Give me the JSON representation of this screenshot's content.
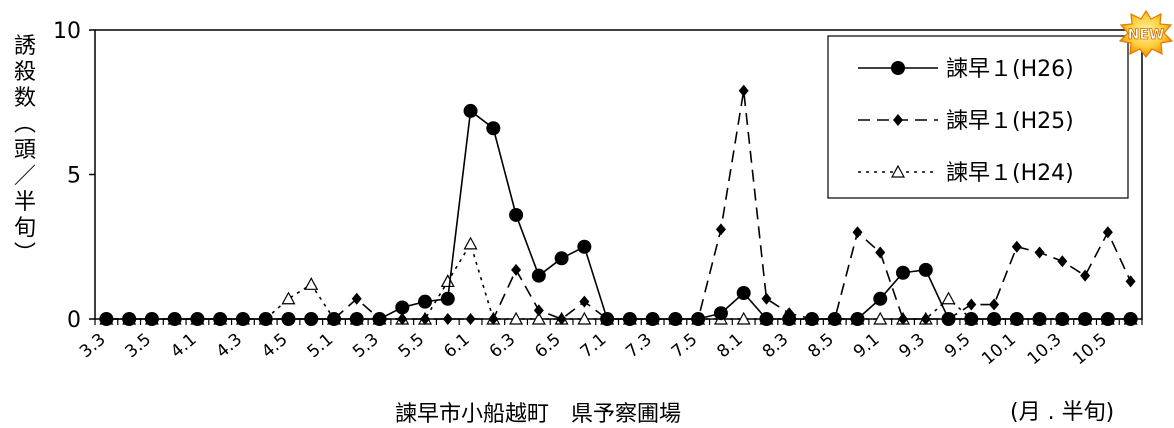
{
  "chart_data": {
    "type": "line",
    "ylabel": "誘殺数（頭/半旬）",
    "xlabel": "諫早市小船越町　県予察圃場",
    "x_unit": "(月 . 半旬)",
    "ylim": [
      0,
      10
    ],
    "yticks": [
      "0",
      "5",
      "10"
    ],
    "categories": [
      "3.3",
      "3.4",
      "3.5",
      "3.6",
      "4.1",
      "4.2",
      "4.3",
      "4.4",
      "4.5",
      "4.6",
      "5.1",
      "5.2",
      "5.3",
      "5.4",
      "5.5",
      "5.6",
      "6.1",
      "6.2",
      "6.3",
      "6.4",
      "6.5",
      "6.6",
      "7.1",
      "7.2",
      "7.3",
      "7.4",
      "7.5",
      "7.6",
      "8.1",
      "8.2",
      "8.3",
      "8.4",
      "8.5",
      "8.6",
      "9.1",
      "9.2",
      "9.3",
      "9.4",
      "9.5",
      "9.6",
      "10.1",
      "10.2",
      "10.3",
      "10.4",
      "10.5",
      "10.6"
    ],
    "tick_labels": [
      "3.3",
      "",
      "3.5",
      "",
      "4.1",
      "",
      "4.3",
      "",
      "4.5",
      "",
      "5.1",
      "",
      "5.3",
      "",
      "5.5",
      "",
      "6.1",
      "",
      "6.3",
      "",
      "6.5",
      "",
      "7.1",
      "",
      "7.3",
      "",
      "7.5",
      "",
      "8.1",
      "",
      "8.3",
      "",
      "8.5",
      "",
      "9.1",
      "",
      "9.3",
      "",
      "9.5",
      "",
      "10.1",
      "",
      "10.3",
      "",
      "10.5",
      ""
    ],
    "series": [
      {
        "name": "諫早１(H26)",
        "style": "solid",
        "marker": "circle",
        "values": [
          0,
          0,
          0,
          0,
          0,
          0,
          0,
          0,
          0,
          0,
          0,
          0,
          0,
          0.4,
          0.6,
          0.7,
          7.2,
          6.6,
          3.6,
          1.5,
          2.1,
          2.5,
          0,
          0,
          0,
          0,
          0,
          0.2,
          0.9,
          0,
          0,
          0,
          0,
          0,
          0.7,
          1.6,
          1.7,
          0,
          0,
          0,
          0,
          0,
          0,
          0,
          0,
          0
        ]
      },
      {
        "name": "諫早１(H25)",
        "style": "dashed",
        "marker": "diamond",
        "values": [
          0,
          0,
          0,
          0,
          0,
          0,
          0,
          0,
          0,
          0,
          0,
          0.7,
          0,
          0,
          0,
          0,
          0,
          0,
          1.7,
          0.3,
          0,
          0.6,
          0,
          0,
          0,
          0,
          0,
          3.1,
          7.9,
          0.7,
          0.2,
          0,
          0,
          3.0,
          2.3,
          0,
          0,
          0,
          0.5,
          0.5,
          2.5,
          2.3,
          2.0,
          1.5,
          3.0,
          1.3
        ]
      },
      {
        "name": "諫早１(H24)",
        "style": "dotted",
        "marker": "triangle",
        "values": [
          0,
          0,
          0,
          0,
          0,
          0,
          0,
          0,
          0.7,
          1.2,
          0,
          0,
          0,
          0,
          0,
          1.3,
          2.6,
          0,
          0,
          0,
          0,
          0,
          0,
          0,
          0,
          0,
          0,
          0,
          0,
          0,
          0,
          0,
          0,
          0,
          0,
          0,
          0,
          0.7,
          0,
          0,
          0,
          0,
          0,
          0,
          0,
          0
        ]
      }
    ],
    "legend_position": "top-right",
    "grid": false,
    "badge_text": "NEW"
  }
}
